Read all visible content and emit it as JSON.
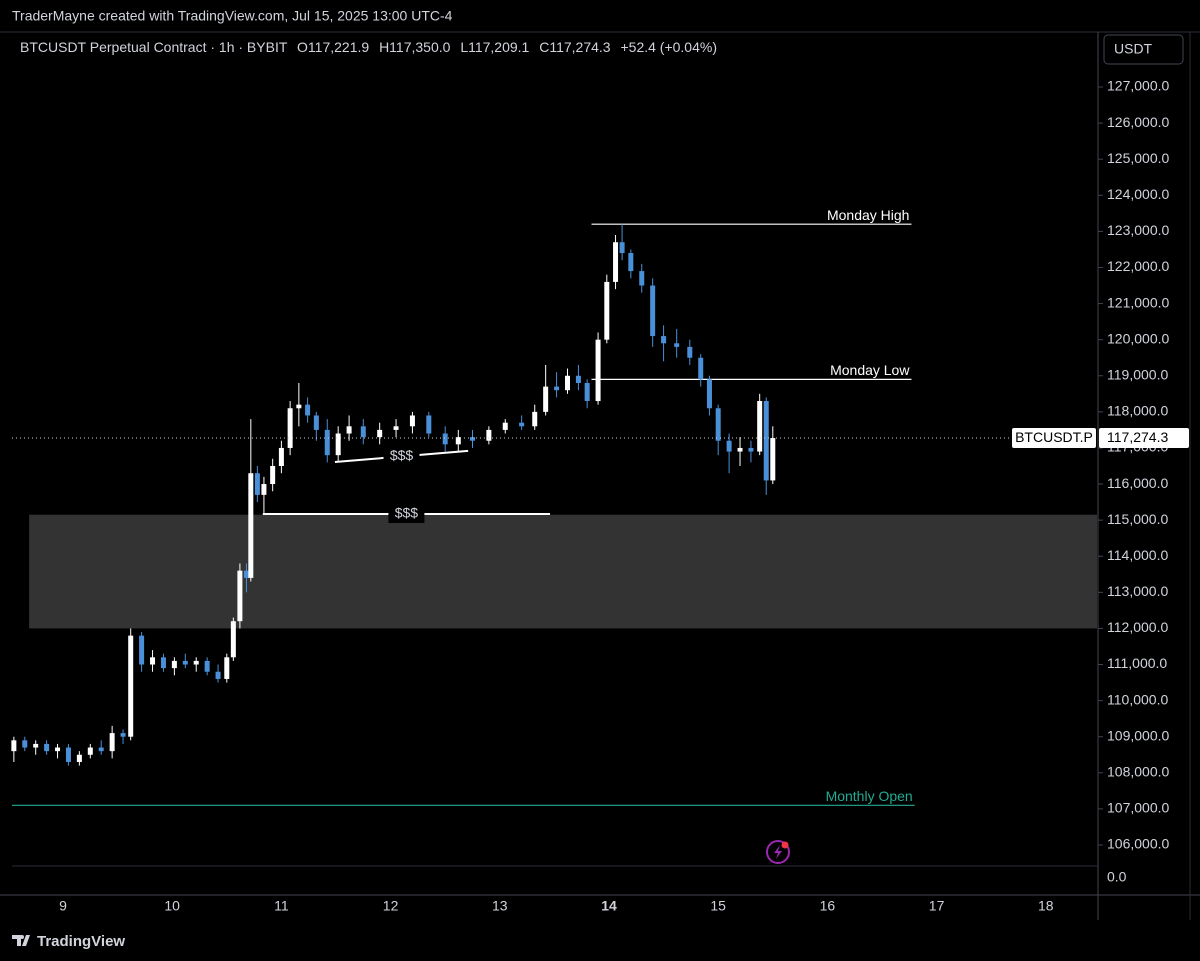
{
  "credit": "TraderMayne created with TradingView.com, Jul 15, 2025 13:00 UTC-4",
  "footer": "TradingView",
  "currency_button": "USDT",
  "chart_data": {
    "type": "candlestick",
    "header": {
      "symbol": "BTCUSDT Perpetual Contract · 1h · BYBIT",
      "open": "O117,221.9",
      "high": "H117,350.0",
      "low": "L117,209.1",
      "close": "C117,274.3",
      "change": "+52.4 (+0.04%)"
    },
    "up_color": "#ffffff",
    "down_color": "#4a90d9",
    "x": [
      8.55,
      8.65,
      8.75,
      8.85,
      8.95,
      9.05,
      9.15,
      9.25,
      9.35,
      9.45,
      9.55,
      9.62,
      9.72,
      9.82,
      9.92,
      10.02,
      10.12,
      10.22,
      10.32,
      10.42,
      10.5,
      10.56,
      10.62,
      10.68,
      10.72,
      10.78,
      10.84,
      10.92,
      11.0,
      11.08,
      11.16,
      11.24,
      11.32,
      11.42,
      11.52,
      11.62,
      11.75,
      11.9,
      12.05,
      12.2,
      12.35,
      12.5,
      12.62,
      12.75,
      12.9,
      13.05,
      13.2,
      13.32,
      13.42,
      13.52,
      13.62,
      13.72,
      13.8,
      13.9,
      13.98,
      14.06,
      14.12,
      14.2,
      14.3,
      14.4,
      14.5,
      14.62,
      14.74,
      14.84,
      14.92,
      15.0,
      15.1,
      15.2,
      15.3,
      15.38,
      15.44,
      15.5
    ],
    "open": [
      108600,
      108900,
      108700,
      108800,
      108600,
      108700,
      108300,
      108500,
      108700,
      108600,
      109100,
      109000,
      111800,
      111000,
      111200,
      110900,
      111100,
      111000,
      111100,
      110800,
      110600,
      111200,
      112200,
      113600,
      113400,
      116300,
      115700,
      116000,
      116500,
      117000,
      118100,
      118200,
      117900,
      117500,
      116800,
      117400,
      117600,
      117300,
      117500,
      117600,
      117900,
      117400,
      117100,
      117300,
      117200,
      117500,
      117700,
      117600,
      118000,
      118700,
      118600,
      119000,
      118800,
      118300,
      120000,
      121600,
      122700,
      122400,
      121900,
      121500,
      120100,
      119900,
      119800,
      119500,
      118900,
      118100,
      117200,
      116900,
      117000,
      116900,
      118300,
      116100
    ],
    "high": [
      109000,
      109000,
      108900,
      108900,
      108800,
      108800,
      108600,
      108800,
      108900,
      109300,
      109200,
      112000,
      111900,
      111400,
      111300,
      111200,
      111300,
      111200,
      111200,
      111000,
      111300,
      112300,
      113800,
      113800,
      117800,
      116500,
      116200,
      116700,
      117200,
      118300,
      118800,
      118400,
      118000,
      117800,
      117600,
      117900,
      117800,
      117700,
      117800,
      118000,
      118000,
      117600,
      117500,
      117500,
      117600,
      117800,
      117900,
      118200,
      119300,
      119100,
      119200,
      119300,
      118900,
      120200,
      121800,
      122900,
      123200,
      122500,
      122100,
      121700,
      120400,
      120300,
      120000,
      119600,
      119000,
      118200,
      117400,
      117300,
      117200,
      118500,
      118400,
      117600
    ],
    "low": [
      108300,
      108600,
      108500,
      108500,
      108400,
      108200,
      108200,
      108400,
      108500,
      108400,
      108800,
      108900,
      110800,
      110800,
      110800,
      110700,
      110900,
      110800,
      110700,
      110500,
      110500,
      111100,
      112000,
      113000,
      113300,
      115500,
      115200,
      115800,
      116300,
      116800,
      117600,
      117700,
      117200,
      116600,
      116600,
      117200,
      117100,
      117100,
      117300,
      117400,
      117300,
      116900,
      116900,
      117000,
      117100,
      117400,
      117500,
      117500,
      117900,
      118400,
      118500,
      118600,
      118100,
      118200,
      119900,
      121400,
      122200,
      121700,
      121300,
      119800,
      119400,
      119500,
      119300,
      118700,
      117900,
      116800,
      116300,
      116500,
      116600,
      116800,
      115700,
      116000
    ],
    "close": [
      108900,
      108700,
      108800,
      108600,
      108700,
      108300,
      108500,
      108700,
      108600,
      109100,
      109000,
      111800,
      111000,
      111200,
      110900,
      111100,
      111000,
      111100,
      110800,
      110600,
      111200,
      112200,
      113600,
      113400,
      116300,
      115700,
      116000,
      116500,
      117000,
      118100,
      118200,
      117900,
      117500,
      116800,
      117400,
      117600,
      117300,
      117500,
      117600,
      117900,
      117400,
      117100,
      117300,
      117200,
      117500,
      117700,
      117600,
      118000,
      118700,
      118600,
      119000,
      118800,
      118300,
      120000,
      121600,
      122700,
      122400,
      121900,
      121500,
      120100,
      119900,
      119800,
      119500,
      118900,
      118100,
      117200,
      116900,
      117000,
      116900,
      118300,
      116100,
      117274.3
    ],
    "xlim": [
      8.533,
      18.469
    ],
    "xticks": [
      9,
      10,
      11,
      12,
      13,
      14,
      15,
      16,
      17,
      18
    ],
    "bold_xticks": [
      14
    ],
    "ylim": [
      105418,
      128524
    ],
    "yticks": [
      {
        "value": 106000,
        "label": "106,000.0"
      },
      {
        "value": 107000,
        "label": "107,000.0"
      },
      {
        "value": 108000,
        "label": "108,000.0"
      },
      {
        "value": 109000,
        "label": "109,000.0"
      },
      {
        "value": 110000,
        "label": "110,000.0"
      },
      {
        "value": 111000,
        "label": "111,000.0"
      },
      {
        "value": 112000,
        "label": "112,000.0"
      },
      {
        "value": 113000,
        "label": "113,000.0"
      },
      {
        "value": 114000,
        "label": "114,000.0"
      },
      {
        "value": 115000,
        "label": "115,000.0"
      },
      {
        "value": 116000,
        "label": "116,000.0"
      },
      {
        "value": 117000,
        "label": "117,000.0"
      },
      {
        "value": 118000,
        "label": "118,000.0"
      },
      {
        "value": 119000,
        "label": "119,000.0"
      },
      {
        "value": 120000,
        "label": "120,000.0"
      },
      {
        "value": 121000,
        "label": "121,000.0"
      },
      {
        "value": 122000,
        "label": "122,000.0"
      },
      {
        "value": 123000,
        "label": "123,000.0"
      },
      {
        "value": 124000,
        "label": "124,000.0"
      },
      {
        "value": 125000,
        "label": "125,000.0"
      },
      {
        "value": 126000,
        "label": "126,000.0"
      },
      {
        "value": 127000,
        "label": "127,000.0"
      }
    ],
    "volume_axis_label": "0.0",
    "last_price": {
      "value": 117274.3,
      "label": "117,274.3",
      "symbol": "BTCUSDT.P"
    },
    "zones": [
      {
        "from": 8.69,
        "low": 112000,
        "high": 115150,
        "color": "#333333"
      }
    ],
    "levels": [
      {
        "label": "Monday High",
        "value": 123200,
        "from": 13.84,
        "to": 16.77,
        "color": "#ffffff"
      },
      {
        "label": "Monday Low",
        "value": 118900,
        "from": 13.84,
        "to": 16.77,
        "color": "#ffffff"
      },
      {
        "label": "Monthly Open",
        "value": 107100,
        "from": 8.533,
        "to": 16.8,
        "color": "#22ab94"
      }
    ],
    "liquidity": [
      {
        "label": "$$$",
        "from": 11.49,
        "to": 12.71,
        "start": 116610,
        "end": 116920
      },
      {
        "label": "$$$",
        "from": 10.83,
        "to": 13.46,
        "start": 115170,
        "end": 115170
      }
    ]
  }
}
